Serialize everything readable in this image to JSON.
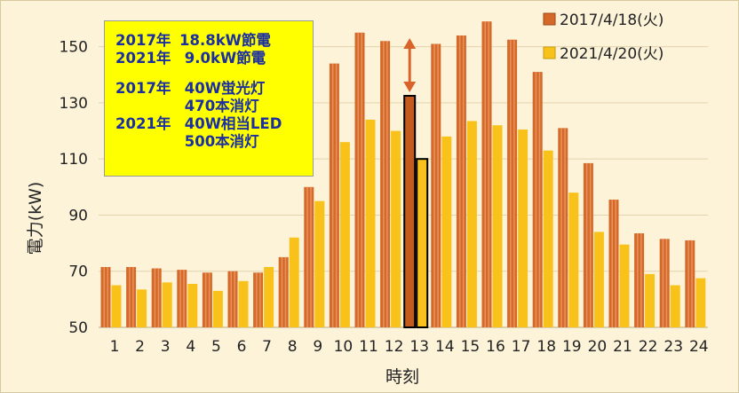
{
  "chart_data": {
    "type": "bar",
    "title": "",
    "xlabel": "時刻",
    "ylabel": "電力(kW)",
    "ylim": [
      50,
      160
    ],
    "yticks": [
      50,
      70,
      90,
      110,
      130,
      150
    ],
    "grid": true,
    "legend_position": "top-right",
    "categories": [
      "1",
      "2",
      "3",
      "4",
      "5",
      "6",
      "7",
      "8",
      "9",
      "10",
      "11",
      "12",
      "13",
      "14",
      "15",
      "16",
      "17",
      "18",
      "19",
      "20",
      "21",
      "22",
      "23",
      "24"
    ],
    "series": [
      {
        "name": "2017/4/18(火)",
        "color": "#d4692a",
        "values": [
          71.5,
          71.5,
          71,
          70.5,
          69.5,
          70,
          69.5,
          75,
          100,
          144,
          155,
          152,
          132.5,
          151,
          154,
          159,
          152.5,
          141,
          121,
          108.5,
          95.5,
          83.5,
          81.5,
          81
        ]
      },
      {
        "name": "2021/4/20(火)",
        "color": "#f8c21a",
        "values": [
          65,
          63.5,
          66,
          65.5,
          63,
          66.5,
          71.5,
          82,
          95,
          116,
          124,
          120,
          110,
          118,
          123.5,
          122,
          120.5,
          113,
          98,
          84,
          79.5,
          69,
          65,
          67.5
        ]
      }
    ],
    "highlight_category": "13",
    "annotations": {
      "note_lines": [
        {
          "year": "2017年",
          "text": "18.8kW節電"
        },
        {
          "year": "2021年",
          "text": " 9.0kW節電"
        },
        {
          "year": "",
          "text": ""
        },
        {
          "year": "2017年",
          "text": " 40W蛍光灯"
        },
        {
          "year": "",
          "text": " 470本消灯"
        },
        {
          "year": "2021年",
          "text": " 40W相当LED"
        },
        {
          "year": "",
          "text": " 500本消灯"
        }
      ],
      "note_bg_color": "#ffff00",
      "note_text_color": "#1c2fa0",
      "arrow_color": "#d9642a"
    }
  }
}
